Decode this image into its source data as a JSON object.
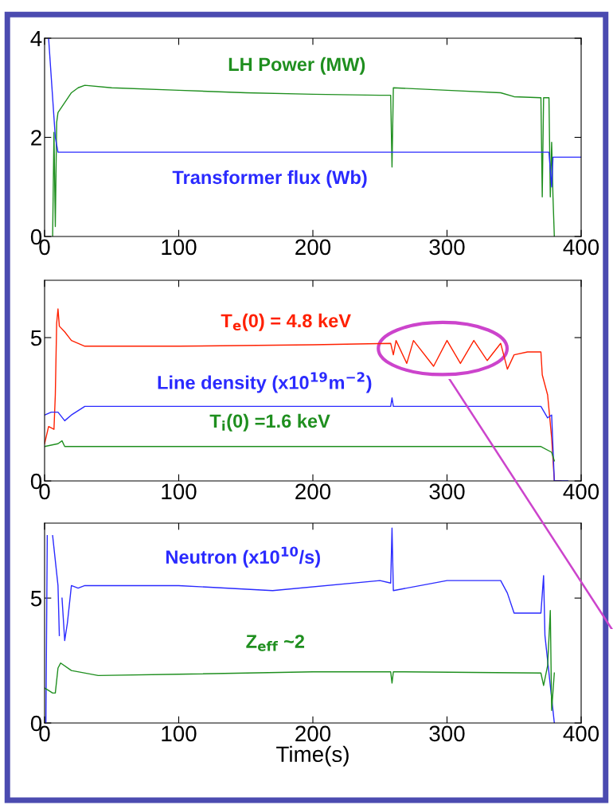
{
  "chart_data": [
    {
      "type": "line",
      "xlim": [
        0,
        400
      ],
      "xticks": [
        0,
        100,
        200,
        300,
        400
      ],
      "ylim": [
        0,
        4
      ],
      "yticks": [
        0,
        2,
        4
      ],
      "grid": false,
      "series": [
        {
          "name": "LH Power (MW)",
          "color": "#1f8f1f",
          "x": [
            6,
            7,
            8,
            9,
            10,
            15,
            20,
            25,
            30,
            50,
            100,
            150,
            200,
            250,
            258,
            259,
            260,
            300,
            340,
            350,
            370,
            371,
            372,
            376,
            377,
            378,
            379,
            380
          ],
          "values": [
            0,
            2.1,
            0.2,
            2.3,
            2.5,
            2.7,
            2.9,
            3.0,
            3.05,
            3.0,
            2.95,
            2.9,
            2.87,
            2.85,
            2.85,
            1.4,
            3.0,
            2.95,
            2.9,
            2.82,
            2.8,
            0.8,
            2.8,
            2.8,
            0.8,
            1.9,
            0.8,
            0
          ]
        },
        {
          "name": "Transformer flux (Wb)",
          "color": "#2a2aff",
          "x": [
            3,
            5,
            8,
            10,
            100,
            200,
            300,
            370,
            376,
            378,
            379,
            400
          ],
          "values": [
            4,
            3.2,
            2.0,
            1.7,
            1.7,
            1.7,
            1.7,
            1.7,
            1.7,
            1.0,
            1.6,
            1.6
          ]
        }
      ]
    },
    {
      "type": "line",
      "xlim": [
        0,
        400
      ],
      "xticks": [
        0,
        100,
        200,
        300,
        400
      ],
      "ylim": [
        0,
        7
      ],
      "yticks": [
        0,
        5
      ],
      "grid": false,
      "series": [
        {
          "name": "T$_{e}$(0) = 4.8 keV",
          "color": "#ff2000",
          "x": [
            0,
            3,
            7,
            8,
            9,
            10,
            11,
            15,
            20,
            30,
            100,
            200,
            258,
            260,
            262,
            270,
            275,
            290,
            300,
            310,
            320,
            330,
            340,
            345,
            350,
            360,
            370,
            371,
            375,
            378,
            380,
            385
          ],
          "values": [
            1.3,
            1.9,
            1.8,
            3,
            5.5,
            6.0,
            5.4,
            5.2,
            4.9,
            4.7,
            4.7,
            4.75,
            4.8,
            4.4,
            4.9,
            4.1,
            4.9,
            4.0,
            4.9,
            4.1,
            4.9,
            4.2,
            4.8,
            3.9,
            4.4,
            4.5,
            4.5,
            3.7,
            3.0,
            1.5,
            0,
            0
          ]
        },
        {
          "name": "Line density (x10$^{19}$m$^{−2}$)",
          "color": "#2a2aff",
          "x": [
            0,
            5,
            10,
            15,
            20,
            30,
            100,
            258,
            259,
            260,
            370,
            375,
            378,
            380,
            390
          ],
          "values": [
            2.3,
            2.4,
            2.4,
            2.1,
            2.3,
            2.6,
            2.6,
            2.6,
            2.9,
            2.6,
            2.6,
            2.2,
            2.3,
            0,
            0
          ]
        },
        {
          "name": "T$_{i}$(0) =1.6 keV",
          "color": "#1f8f1f",
          "x": [
            0,
            10,
            13,
            15,
            100,
            370,
            378,
            380
          ],
          "values": [
            1.2,
            1.3,
            1.4,
            1.2,
            1.2,
            1.2,
            1.0,
            0.7
          ]
        }
      ]
    },
    {
      "type": "line",
      "xlim": [
        0,
        400
      ],
      "xticks": [
        0,
        100,
        200,
        300,
        400
      ],
      "ylim": [
        0,
        8
      ],
      "yticks": [
        0,
        5
      ],
      "xlabel": "Time(s)",
      "grid": false,
      "series": [
        {
          "name": "Neutron (x10$^{10}$/s)",
          "color": "#2a2aff",
          "x": [
            1,
            2,
            4,
            6,
            10,
            11,
            12,
            13,
            15,
            17,
            20,
            25,
            30,
            100,
            170,
            250,
            258,
            259,
            260,
            300,
            340,
            345,
            350,
            370,
            372,
            373,
            378,
            380
          ],
          "values": [
            0,
            7.5,
            null,
            7.5,
            5.5,
            3.5,
            null,
            5,
            3.3,
            4,
            5.5,
            5.4,
            5.5,
            5.5,
            5.3,
            5.7,
            5.6,
            7.8,
            5.3,
            5.7,
            5.7,
            5.2,
            4.4,
            4.4,
            5.9,
            3.5,
            1.0,
            0
          ]
        },
        {
          "name": "Z$_{eff}$ ~2",
          "color": "#1f8f1f",
          "x": [
            0,
            3,
            6,
            8,
            10,
            12,
            20,
            40,
            100,
            200,
            258,
            259,
            260,
            370,
            372,
            375,
            377,
            378,
            380
          ],
          "values": [
            1.4,
            1.3,
            1.2,
            1.2,
            2.2,
            2.4,
            2.1,
            1.9,
            1.95,
            2.05,
            2.05,
            1.6,
            2.05,
            2.0,
            1.5,
            2.3,
            4.5,
            0.5,
            2.0
          ]
        }
      ]
    }
  ]
}
